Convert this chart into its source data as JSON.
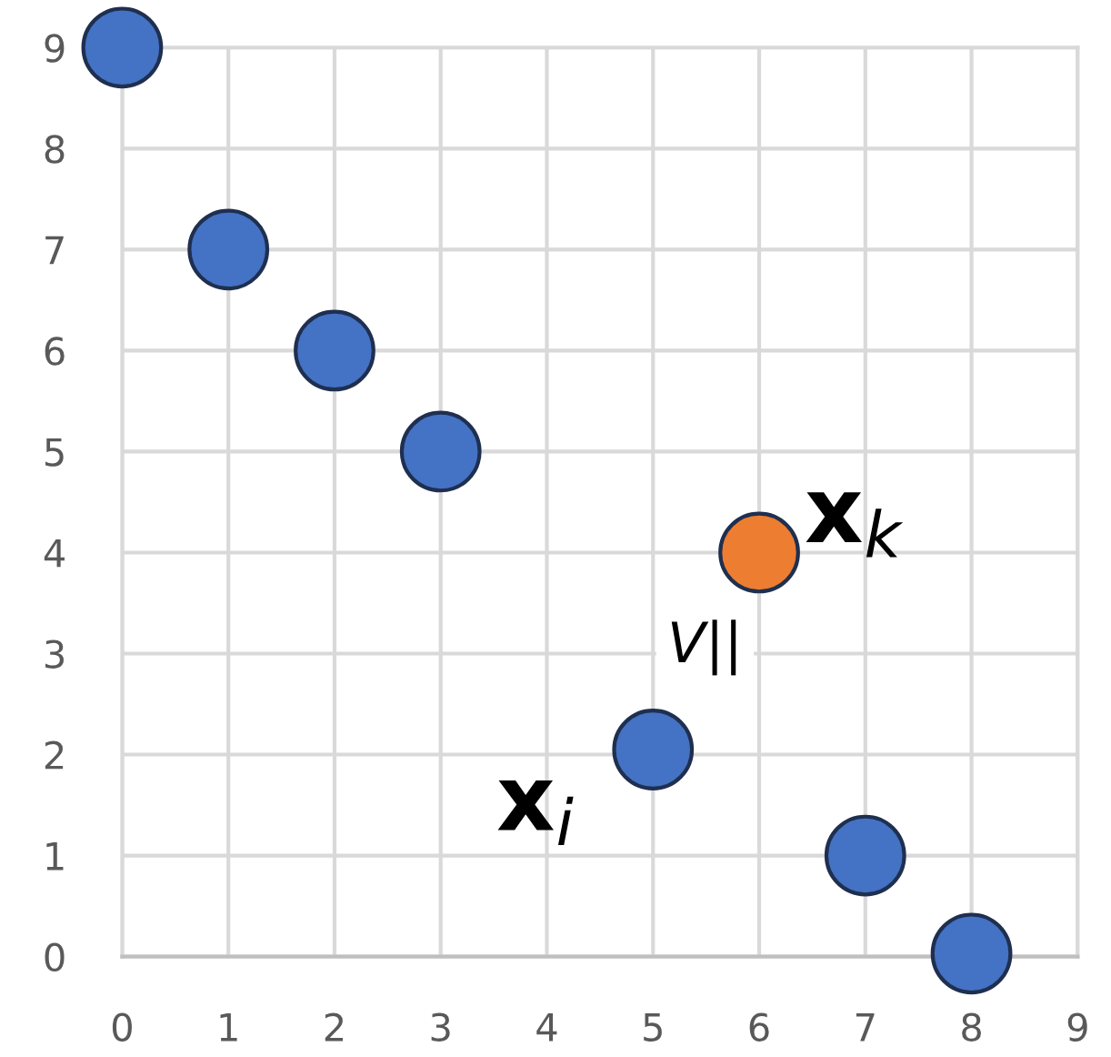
{
  "chart_data": {
    "type": "scatter",
    "xlim": [
      0,
      9
    ],
    "ylim": [
      0,
      9
    ],
    "xticks": [
      0,
      1,
      2,
      3,
      4,
      5,
      6,
      7,
      8,
      9
    ],
    "yticks": [
      0,
      1,
      2,
      3,
      4,
      5,
      6,
      7,
      8,
      9
    ],
    "grid": true,
    "marker": "circle",
    "series": [
      {
        "color": "#4472c4",
        "x": [
          0,
          1,
          2,
          3,
          5,
          7,
          8
        ],
        "values": [
          9,
          7,
          6,
          5,
          2.05,
          1,
          0.03
        ]
      },
      {
        "color": "#ed7d31",
        "x": [
          6
        ],
        "values": [
          4
        ]
      }
    ],
    "annotations": [
      {
        "text": "x$_{i}$",
        "x": 5,
        "y": 2.05
      },
      {
        "text": "x$_{k}$",
        "x": 6,
        "y": 4
      },
      "V||"
    ]
  }
}
